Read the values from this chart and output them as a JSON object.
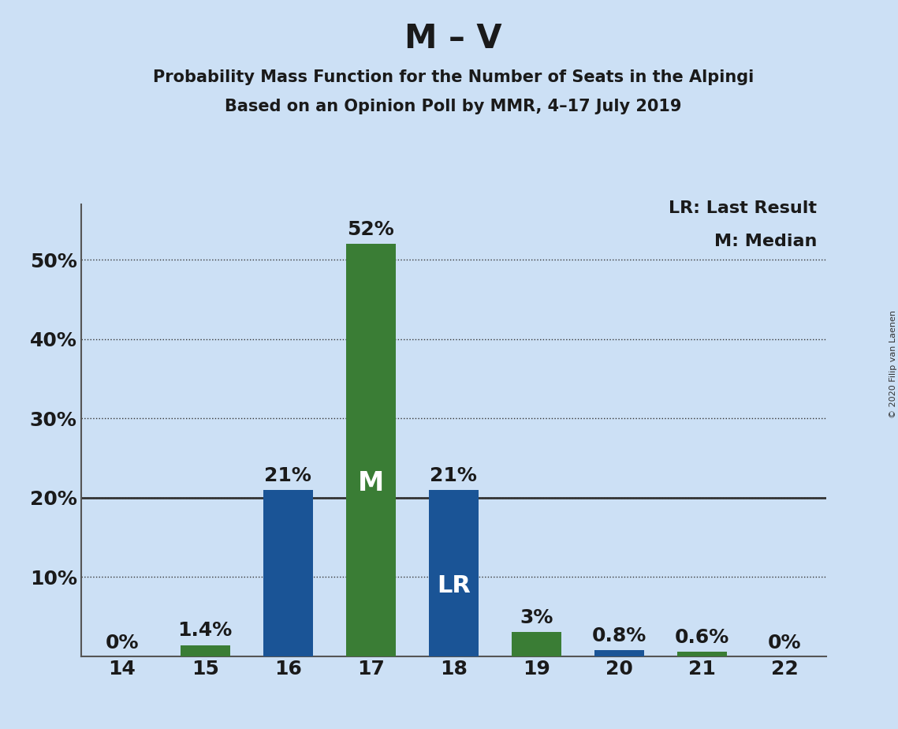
{
  "title": "M – V",
  "subtitle1": "Probability Mass Function for the Number of Seats in the Alpingi",
  "subtitle2": "Based on an Opinion Poll by MMR, 4–17 July 2019",
  "copyright": "© 2020 Filip van Laenen",
  "seats": [
    14,
    15,
    16,
    17,
    18,
    19,
    20,
    21,
    22
  ],
  "bar_values": [
    0.0,
    1.4,
    21.0,
    52.0,
    21.0,
    3.0,
    0.8,
    0.6,
    0.0
  ],
  "bar_colors": [
    "green",
    "green",
    "blue",
    "green",
    "blue",
    "green",
    "blue",
    "green",
    "green"
  ],
  "bar_labels": [
    "0%",
    "1.4%",
    "21%",
    "52%",
    "21%",
    "3%",
    "0.8%",
    "0.6%",
    "0%"
  ],
  "green_color": "#3a7d35",
  "blue_color": "#1a5496",
  "background_color": "#cce0f5",
  "ylim": [
    0,
    57
  ],
  "yticks": [
    10,
    20,
    30,
    40,
    50
  ],
  "ytick_labels": [
    "10%",
    "20%",
    "30%",
    "40%",
    "50%"
  ],
  "median_seat": 17,
  "lr_seat": 18,
  "legend_lr": "LR: Last Result",
  "legend_m": "M: Median",
  "bar_width": 0.6,
  "title_fontsize": 30,
  "subtitle_fontsize": 15,
  "tick_fontsize": 18,
  "annotation_fontsize": 18,
  "inner_label_fontsize": 24
}
